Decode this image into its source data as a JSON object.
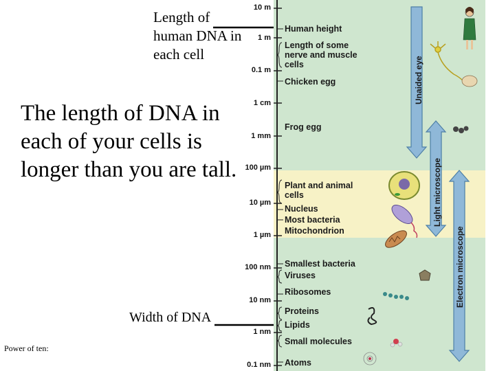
{
  "slide": {
    "caption_top": "Length of human DNA in each cell",
    "main_text": "The length of DNA in each of your cells is longer than you are tall.",
    "caption_bottom": "Width of DNA",
    "power_label": "Power of ten:"
  },
  "scale": {
    "marks": [
      "10 m",
      "1 m",
      "0.1 m",
      "1 cm",
      "1 mm",
      "100 µm",
      "10 µm",
      "1 µm",
      "100 nm",
      "10 nm",
      "1 nm",
      "0.1 nm"
    ],
    "objects": [
      "Human height",
      "Length of some nerve and muscle cells",
      "Chicken egg",
      "Frog egg",
      "Plant and animal cells",
      "Nucleus",
      "Most bacteria",
      "Mitochondrion",
      "Smallest bacteria",
      "Viruses",
      "Ribosomes",
      "Proteins",
      "Lipids",
      "Small molecules",
      "Atoms"
    ],
    "ranges": [
      "Unaided eye",
      "Light microscope",
      "Electron microscope"
    ],
    "colors": {
      "green": "#cfe6cf",
      "yellow": "#f7f2c6",
      "arrow": "#8fb8d8"
    }
  }
}
